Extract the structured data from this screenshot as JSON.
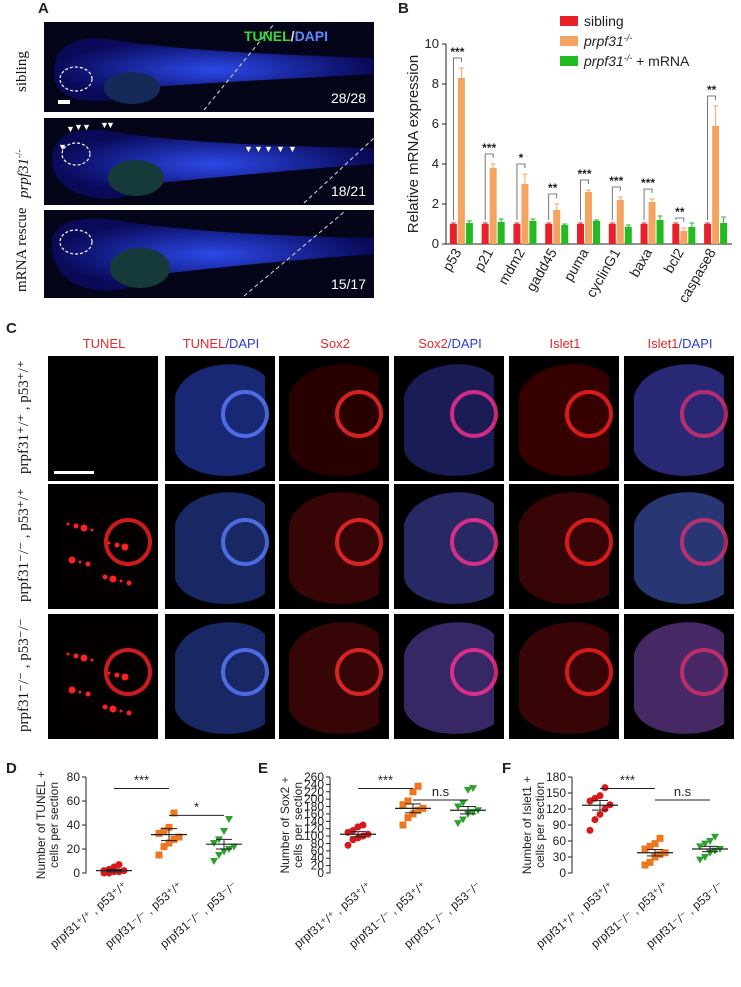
{
  "panels": {
    "A": "A",
    "B": "B",
    "C": "C",
    "D": "D",
    "E": "E",
    "F": "F"
  },
  "panelA": {
    "title_tunel": "TUNEL",
    "title_sep": "/",
    "title_dapi": "DAPI",
    "rows": [
      {
        "label": "sibling",
        "fraction": "28/28"
      },
      {
        "label": "prpf31",
        "label_sup": "-/-",
        "fraction": "18/21"
      },
      {
        "label": "mRNA rescue",
        "fraction": "15/17"
      }
    ]
  },
  "panelC": {
    "columns": [
      {
        "a": "TUNEL",
        "b": ""
      },
      {
        "a": "TUNEL",
        "b": "/DAPI"
      },
      {
        "a": "Sox2",
        "b": ""
      },
      {
        "a": "Sox2",
        "b": "/DAPI"
      },
      {
        "a": "Islet1",
        "b": ""
      },
      {
        "a": "Islet1",
        "b": "/DAPI"
      }
    ],
    "rows": [
      "prpf31⁺/⁺ , p53⁺/⁺",
      "prpf31⁻/⁻ , p53⁺/⁺",
      "prpf31⁻/⁻ , p53⁻/⁻"
    ]
  },
  "chart_data": [
    {
      "panel": "B",
      "type": "bar",
      "ylabel": "Relative mRNA expression",
      "ylim": [
        0,
        10
      ],
      "yticks": [
        0,
        2,
        4,
        6,
        8,
        10
      ],
      "categories": [
        "p53",
        "p21",
        "mdm2",
        "gadd45",
        "puma",
        "cyclinG1",
        "baxa",
        "bcl2",
        "caspase8"
      ],
      "significance": [
        "***",
        "***",
        "*",
        "**",
        "***",
        "***",
        "***",
        "**",
        "**"
      ],
      "colors": [
        "#e8202a",
        "#f4a460",
        "#22bb22"
      ],
      "series": [
        {
          "name": "sibling",
          "values": [
            1,
            1,
            1,
            1,
            1,
            1,
            1,
            1,
            1
          ]
        },
        {
          "name": "prpf31",
          "name_sup": "-/-",
          "values": [
            8.3,
            3.8,
            3.0,
            1.7,
            2.6,
            2.2,
            2.1,
            0.65,
            5.9
          ]
        },
        {
          "name": "prpf31",
          "name_sup": "-/-",
          "name_suffix": " + mRNA",
          "values": [
            1.05,
            1.1,
            1.15,
            0.95,
            1.15,
            0.85,
            1.2,
            0.85,
            1.05
          ]
        }
      ],
      "errors": [
        [
          0.05,
          0.05,
          0.05,
          0.05,
          0.05,
          0.05,
          0.05,
          0.05,
          0.05
        ],
        [
          0.5,
          0.2,
          0.5,
          0.3,
          0.1,
          0.15,
          0.15,
          0.15,
          1.0
        ],
        [
          0.1,
          0.15,
          0.1,
          0.05,
          0.05,
          0.1,
          0.2,
          0.2,
          0.3
        ]
      ]
    },
    {
      "panel": "D",
      "type": "scatter",
      "ylabel": "Number of TUNEL +",
      "ylabel2": "cells per section",
      "ylim": [
        0,
        80
      ],
      "yticks": [
        0,
        20,
        40,
        60,
        80
      ],
      "categories": [
        "prpf31⁺/⁺ , p53⁺/⁺",
        "prpf31⁻/⁻ , p53⁺/⁺",
        "prpf31⁻/⁻ , p53⁻/⁻"
      ],
      "significance": [
        {
          "between": [
            0,
            1
          ],
          "label": "***"
        },
        {
          "between": [
            1,
            2
          ],
          "label": "*"
        }
      ],
      "means": [
        2,
        32,
        24
      ],
      "sem": [
        1,
        5,
        4
      ],
      "groups": [
        {
          "color": "#d7191c",
          "marker": "circle",
          "values": [
            0,
            0,
            1,
            1,
            2,
            2,
            3,
            5,
            7
          ]
        },
        {
          "color": "#f0761e",
          "marker": "square",
          "values": [
            15,
            22,
            25,
            28,
            30,
            33,
            35,
            38,
            50
          ]
        },
        {
          "color": "#2ca02c",
          "marker": "triangle",
          "values": [
            10,
            15,
            18,
            20,
            22,
            25,
            28,
            35,
            45
          ]
        }
      ]
    },
    {
      "panel": "E",
      "type": "scatter",
      "ylabel": "Number of Sox2 +",
      "ylabel2": "cells per section",
      "ylim": [
        0,
        260
      ],
      "yticks": [
        0,
        20,
        40,
        60,
        80,
        100,
        120,
        140,
        160,
        180,
        200,
        220,
        240,
        260
      ],
      "categories": [
        "prpf31⁺/⁺ , p53⁺/⁺",
        "prpf31⁻/⁻ , p53⁺/⁺",
        "prpf31⁻/⁻ , p53⁻/⁻"
      ],
      "significance": [
        {
          "between": [
            0,
            1
          ],
          "label": "***"
        },
        {
          "between": [
            1,
            2
          ],
          "label": "n.s"
        }
      ],
      "means": [
        105,
        175,
        170
      ],
      "sem": [
        7,
        12,
        10
      ],
      "groups": [
        {
          "color": "#d7191c",
          "marker": "circle",
          "values": [
            75,
            90,
            95,
            100,
            105,
            110,
            115,
            125,
            130
          ]
        },
        {
          "color": "#f0761e",
          "marker": "square",
          "values": [
            130,
            150,
            160,
            170,
            175,
            185,
            195,
            220,
            235
          ]
        },
        {
          "color": "#2ca02c",
          "marker": "triangle",
          "values": [
            135,
            145,
            160,
            165,
            170,
            180,
            190,
            225,
            230
          ]
        }
      ]
    },
    {
      "panel": "F",
      "type": "scatter",
      "ylabel": "Number of Islet1 +",
      "ylabel2": "cells per section",
      "ylim": [
        0,
        180
      ],
      "yticks": [
        0,
        30,
        60,
        90,
        120,
        150,
        180
      ],
      "categories": [
        "prpf31⁺/⁺ , p53⁺/⁺",
        "prpf31⁻/⁻ , p53⁺/⁺",
        "prpf31⁻/⁻ , p53⁻/⁻"
      ],
      "significance": [
        {
          "between": [
            0,
            1
          ],
          "label": "***"
        },
        {
          "between": [
            1,
            2
          ],
          "label": "n.s"
        }
      ],
      "means": [
        127,
        38,
        45
      ],
      "sem": [
        9,
        6,
        5
      ],
      "groups": [
        {
          "color": "#d7191c",
          "marker": "circle",
          "values": [
            80,
            100,
            110,
            120,
            128,
            135,
            140,
            145,
            160
          ]
        },
        {
          "color": "#f0761e",
          "marker": "square",
          "values": [
            15,
            20,
            30,
            35,
            38,
            45,
            50,
            55,
            65
          ]
        },
        {
          "color": "#2ca02c",
          "marker": "triangle",
          "values": [
            25,
            30,
            38,
            42,
            45,
            50,
            55,
            60,
            68
          ]
        }
      ]
    }
  ]
}
